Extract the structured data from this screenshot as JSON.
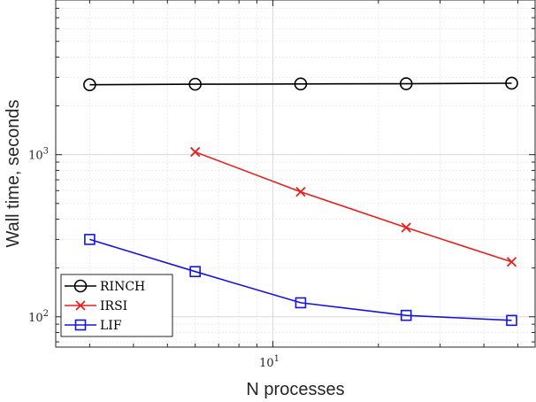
{
  "chart_data": {
    "type": "line",
    "xscale": "log",
    "yscale": "log",
    "xlabel": "N processes",
    "ylabel": "Wall time, seconds",
    "xlim": [
      2.4,
      56
    ],
    "ylim": [
      65,
      9000
    ],
    "x_ticks": [
      {
        "value": 10,
        "base": "10",
        "exp": "1"
      }
    ],
    "y_ticks": [
      {
        "value": 100,
        "base": "10",
        "exp": "2"
      },
      {
        "value": 1000,
        "base": "10",
        "exp": "3"
      }
    ],
    "grid": true,
    "legend_position": "bottom-left",
    "series": [
      {
        "name": "RINCH",
        "color": "#000000",
        "marker": "circle",
        "x": [
          3,
          6,
          12,
          24,
          48
        ],
        "y": [
          2700,
          2720,
          2730,
          2740,
          2760
        ]
      },
      {
        "name": "IRSI",
        "color": "#e8201c",
        "marker": "x",
        "x": [
          6,
          12,
          24,
          48
        ],
        "y": [
          1040,
          590,
          355,
          218
        ]
      },
      {
        "name": "LIF",
        "color": "#1414e6",
        "marker": "square",
        "x": [
          3,
          6,
          12,
          24,
          48
        ],
        "y": [
          300,
          190,
          122,
          102,
          95
        ]
      }
    ]
  }
}
